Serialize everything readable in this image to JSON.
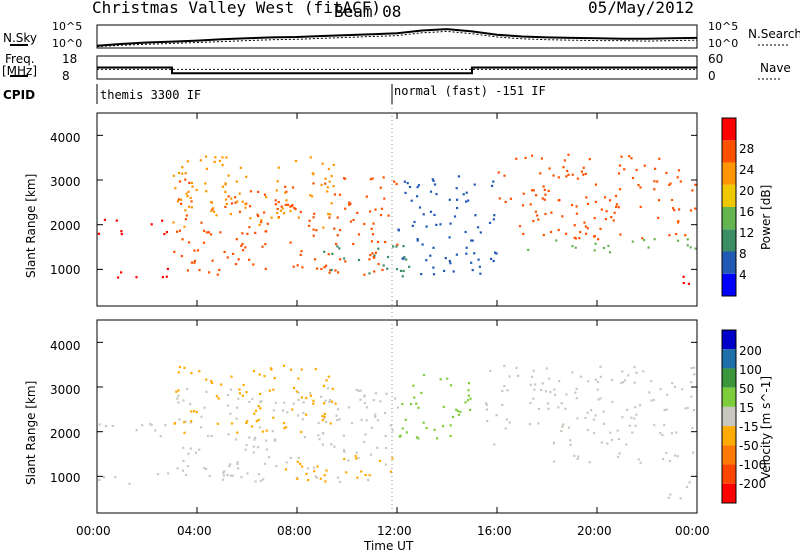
{
  "header": {
    "site": "Christmas Valley West (fitACF)",
    "beam": "Beam 08",
    "date": "05/May/2012"
  },
  "strip_labels": {
    "nsky": "N.Sky",
    "nsky_ticks": [
      "10^5",
      "10^0"
    ],
    "nsearch": "N.Search",
    "nsearch_ticks": [
      "10^5",
      "10^0"
    ],
    "freq": "Freq.",
    "freq_unit": "[MHz]",
    "freq_ticks": [
      "18",
      "8"
    ],
    "nave": "Nave",
    "nave_ticks": [
      "60",
      "0"
    ],
    "cpid": "CPID",
    "cpid_modes": [
      "themis 3300 IF",
      "normal (fast) -151 IF"
    ]
  },
  "colors": {
    "power": [
      "#0000ff",
      "#205ab4",
      "#3c8c64",
      "#64b450",
      "#f0c800",
      "#ff9600",
      "#ff5000",
      "#ff0000"
    ],
    "velocity": [
      "#0000c8",
      "#1e6eaa",
      "#3c963c",
      "#7ccc3c",
      "#c8c8c0",
      "#ffaa00",
      "#ff7800",
      "#ff4600",
      "#ff0000"
    ]
  },
  "chart_data": [
    {
      "type": "line",
      "title": "N.Sky / N.Search",
      "xlabel": "Time UT",
      "x": [
        "00:00",
        "01:00",
        "02:00",
        "03:00",
        "04:00",
        "05:00",
        "06:00",
        "07:00",
        "08:00",
        "09:00",
        "10:00",
        "11:00",
        "12:00",
        "13:00",
        "14:00",
        "15:00",
        "16:00",
        "17:00",
        "18:00",
        "19:00",
        "20:00",
        "21:00",
        "22:00",
        "23:00",
        "00:00"
      ],
      "series": [
        {
          "name": "N.Sky",
          "values": [
            0.5,
            0.9,
            1.2,
            1.4,
            1.6,
            1.9,
            2.1,
            2.3,
            2.4,
            2.6,
            2.8,
            3.0,
            3.2,
            3.8,
            4.1,
            3.6,
            2.9,
            2.5,
            2.3,
            2.2,
            2.1,
            2.0,
            2.0,
            2.1,
            2.2
          ]
        },
        {
          "name": "N.Search",
          "values": [
            0.3,
            0.6,
            0.8,
            1.0,
            1.2,
            1.4,
            1.6,
            1.8,
            1.9,
            2.1,
            2.3,
            2.5,
            2.7,
            3.3,
            3.6,
            3.1,
            2.4,
            2.0,
            1.8,
            1.7,
            1.6,
            1.6,
            1.5,
            1.6,
            1.7
          ]
        }
      ],
      "ytick_labels": [
        "10^0",
        "10^5"
      ]
    },
    {
      "type": "line",
      "title": "Freq. / Nave",
      "xlabel": "Time UT",
      "x": [
        "00:00",
        "01:00",
        "02:00",
        "03:00",
        "04:00",
        "05:00",
        "06:00",
        "07:00",
        "08:00",
        "09:00",
        "10:00",
        "11:00",
        "12:00",
        "13:00",
        "14:00",
        "15:00",
        "16:00",
        "17:00",
        "18:00",
        "19:00",
        "20:00",
        "21:00",
        "22:00",
        "23:00",
        "00:00"
      ],
      "series": [
        {
          "name": "Freq.",
          "values": [
            13,
            13,
            13,
            10.5,
            10.5,
            10.5,
            10.5,
            10.5,
            10.5,
            10.5,
            10.5,
            10.5,
            10.5,
            10.5,
            10.5,
            13,
            13,
            13,
            13,
            13,
            13,
            13,
            13,
            13,
            13
          ]
        },
        {
          "name": "Nave",
          "values": [
            25,
            25,
            25,
            25,
            25,
            25,
            25,
            25,
            25,
            25,
            25,
            25,
            25,
            25,
            25,
            25,
            25,
            25,
            25,
            25,
            25,
            25,
            25,
            25,
            25
          ]
        }
      ],
      "ylabel": "[MHz]",
      "ylim": [
        8,
        18
      ]
    },
    {
      "type": "heatmap",
      "title": "Power",
      "xlabel": "Time UT",
      "ylabel": "Slant Range [km]",
      "colorbar_label": "Power [dB]",
      "colorbar_ticks": [
        "4",
        "8",
        "12",
        "16",
        "20",
        "24",
        "28"
      ],
      "xlim": [
        "00:00",
        "24:00"
      ],
      "ylim": [
        180,
        4500
      ],
      "yticks": [
        "1000",
        "2000",
        "3000",
        "4000"
      ],
      "xticks": [
        "00:00",
        "04:00",
        "08:00",
        "12:00",
        "16:00",
        "20:00",
        "00:00"
      ],
      "bands": [
        {
          "t0": 0.0,
          "t1": 2.8,
          "r0": 1800,
          "r1": 2200,
          "level": 7
        },
        {
          "t0": 0.0,
          "t1": 3.0,
          "r0": 800,
          "r1": 1050,
          "level": 7
        },
        {
          "t0": 3.0,
          "t1": 12.0,
          "r0": 900,
          "r1": 3100,
          "level": 6
        },
        {
          "t0": 3.0,
          "t1": 9.5,
          "r0": 1900,
          "r1": 3600,
          "level": 5
        },
        {
          "t0": 9.0,
          "t1": 12.5,
          "r0": 800,
          "r1": 1600,
          "level": 2
        },
        {
          "t0": 12.0,
          "t1": 16.0,
          "r0": 900,
          "r1": 3200,
          "level": 1
        },
        {
          "t0": 16.0,
          "t1": 24.0,
          "r0": 1700,
          "r1": 3600,
          "level": 6
        },
        {
          "t0": 17.0,
          "t1": 24.0,
          "r0": 1400,
          "r1": 1700,
          "level": 3
        },
        {
          "t0": 23.0,
          "t1": 24.0,
          "r0": 500,
          "r1": 900,
          "level": 7
        }
      ]
    },
    {
      "type": "heatmap",
      "title": "Velocity",
      "xlabel": "Time UT",
      "ylabel": "Slant Range [km]",
      "colorbar_label": "Velocity [m s^-1]",
      "colorbar_ticks": [
        "200",
        "100",
        "50",
        "15",
        "-15",
        "-50",
        "-100",
        "-200"
      ],
      "xlim": [
        "00:00",
        "24:00"
      ],
      "ylim": [
        180,
        4500
      ],
      "yticks": [
        "1000",
        "2000",
        "3000",
        "4000"
      ],
      "xticks": [
        "00:00",
        "04:00",
        "08:00",
        "12:00",
        "16:00",
        "20:00",
        "00:00"
      ],
      "bands": [
        {
          "t0": 0.0,
          "t1": 3.0,
          "r0": 1800,
          "r1": 2200,
          "level": 4
        },
        {
          "t0": 0.0,
          "t1": 3.0,
          "r0": 850,
          "r1": 1100,
          "level": 4
        },
        {
          "t0": 3.0,
          "t1": 12.0,
          "r0": 900,
          "r1": 3000,
          "level": 4
        },
        {
          "t0": 3.0,
          "t1": 9.5,
          "r0": 2000,
          "r1": 3500,
          "level": 5
        },
        {
          "t0": 7.5,
          "t1": 12.0,
          "r0": 850,
          "r1": 1500,
          "level": 5
        },
        {
          "t0": 12.0,
          "t1": 15.0,
          "r0": 1800,
          "r1": 3300,
          "level": 3
        },
        {
          "t0": 15.5,
          "t1": 24.0,
          "r0": 1700,
          "r1": 3500,
          "level": 4
        },
        {
          "t0": 18.0,
          "t1": 24.0,
          "r0": 1300,
          "r1": 1600,
          "level": 4
        },
        {
          "t0": 22.5,
          "t1": 24.0,
          "r0": 500,
          "r1": 900,
          "level": 4
        }
      ]
    }
  ]
}
